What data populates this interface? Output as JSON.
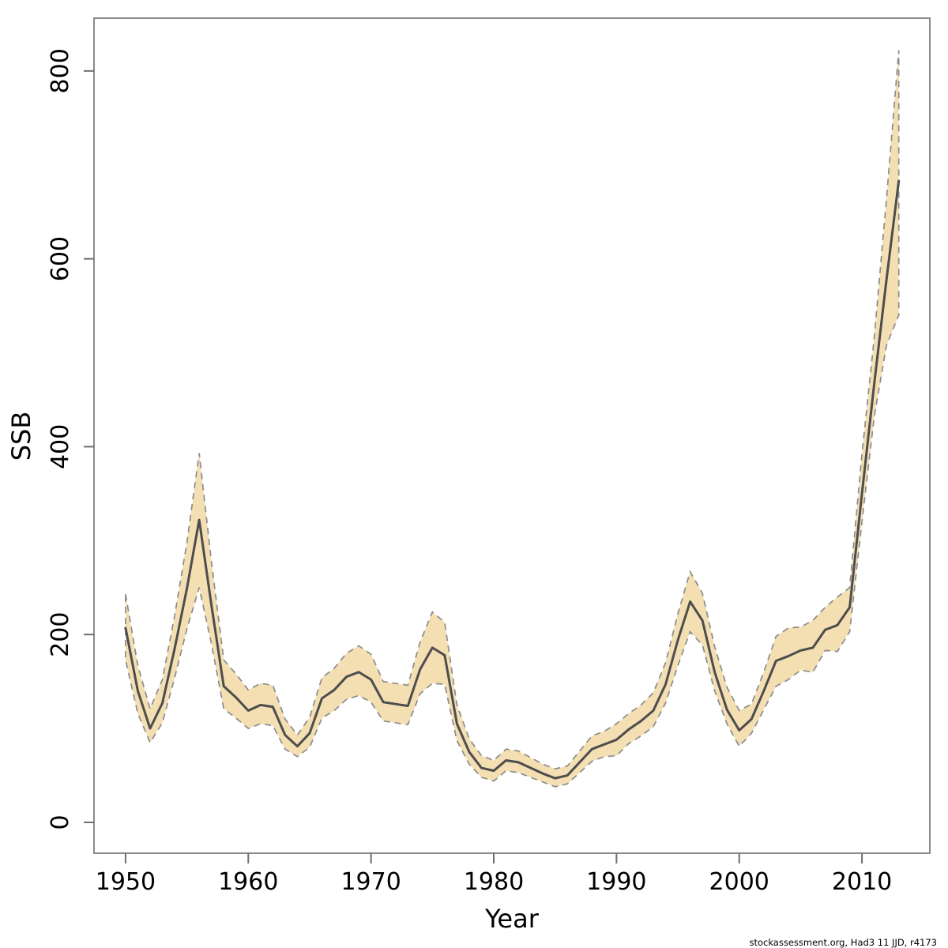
{
  "chart_data": {
    "type": "line",
    "title": "",
    "xlabel": "Year",
    "ylabel": "SSB",
    "watermark": "stockassessment.org, Had3 11 JJD, r4173",
    "grid": false,
    "legend": "none",
    "xlim": [
      1947.43,
      2015.53
    ],
    "ylim": [
      -32.8,
      856.2
    ],
    "x_ticks": [
      1950,
      1960,
      1970,
      1980,
      1990,
      2000,
      2010
    ],
    "y_ticks": [
      0,
      200,
      400,
      600,
      800
    ],
    "x": [
      1950,
      1951,
      1952,
      1953,
      1954,
      1955,
      1956,
      1957,
      1958,
      1959,
      1960,
      1961,
      1962,
      1963,
      1964,
      1965,
      1966,
      1967,
      1968,
      1969,
      1970,
      1971,
      1972,
      1973,
      1974,
      1975,
      1976,
      1977,
      1978,
      1979,
      1980,
      1981,
      1982,
      1983,
      1984,
      1985,
      1986,
      1987,
      1988,
      1989,
      1990,
      1991,
      1992,
      1993,
      1994,
      1995,
      1996,
      1997,
      1998,
      1999,
      2000,
      2001,
      2002,
      2003,
      2004,
      2005,
      2006,
      2007,
      2008,
      2009,
      2010,
      2011,
      2012,
      2013
    ],
    "series": [
      {
        "name": "SSB estimate",
        "role": "center",
        "values": [
          207,
          140,
          100,
          127,
          185,
          249,
          322,
          231,
          145,
          133,
          119,
          125,
          123,
          93,
          81,
          95,
          132,
          141,
          155,
          160,
          152,
          128,
          126,
          124,
          163,
          186,
          178,
          105,
          75,
          58,
          55,
          66,
          64,
          58,
          52,
          47,
          50,
          64,
          78,
          83,
          88,
          99,
          108,
          119,
          147,
          194,
          235,
          215,
          160,
          120,
          98,
          110,
          140,
          172,
          177,
          183,
          186,
          205,
          210,
          229,
          350,
          467,
          578,
          683
        ]
      },
      {
        "name": "SSB upper confidence bound",
        "role": "band-upper",
        "values": [
          243,
          167,
          121,
          152,
          220,
          298,
          393,
          277,
          173,
          158,
          141,
          148,
          146,
          110,
          93,
          112,
          154,
          164,
          180,
          188,
          179,
          150,
          148,
          146,
          192,
          224,
          213,
          125,
          89,
          71,
          66,
          78,
          76,
          69,
          62,
          57,
          60,
          76,
          92,
          97,
          105,
          116,
          125,
          138,
          170,
          222,
          267,
          244,
          187,
          144,
          119,
          126,
          160,
          198,
          207,
          208,
          215,
          229,
          240,
          250,
          392,
          516,
          664,
          822
        ]
      },
      {
        "name": "SSB lower confidence bound",
        "role": "band-lower",
        "values": [
          173,
          116,
          85,
          106,
          154,
          206,
          250,
          190,
          121,
          111,
          100,
          105,
          103,
          78,
          70,
          80,
          111,
          119,
          131,
          135,
          128,
          108,
          106,
          104,
          137,
          148,
          147,
          87,
          62,
          48,
          44,
          55,
          53,
          48,
          43,
          38,
          41,
          53,
          65,
          70,
          71,
          84,
          92,
          102,
          127,
          167,
          203,
          189,
          140,
          105,
          81,
          95,
          120,
          145,
          152,
          162,
          160,
          183,
          182,
          203,
          320,
          432,
          508,
          540
        ]
      }
    ],
    "colors": {
      "band_fill": "#F4DFB3",
      "band_border": "#8C8C8C",
      "line": "#4D4D4D",
      "axis": "#6E6E6E",
      "text": "#000000"
    }
  }
}
